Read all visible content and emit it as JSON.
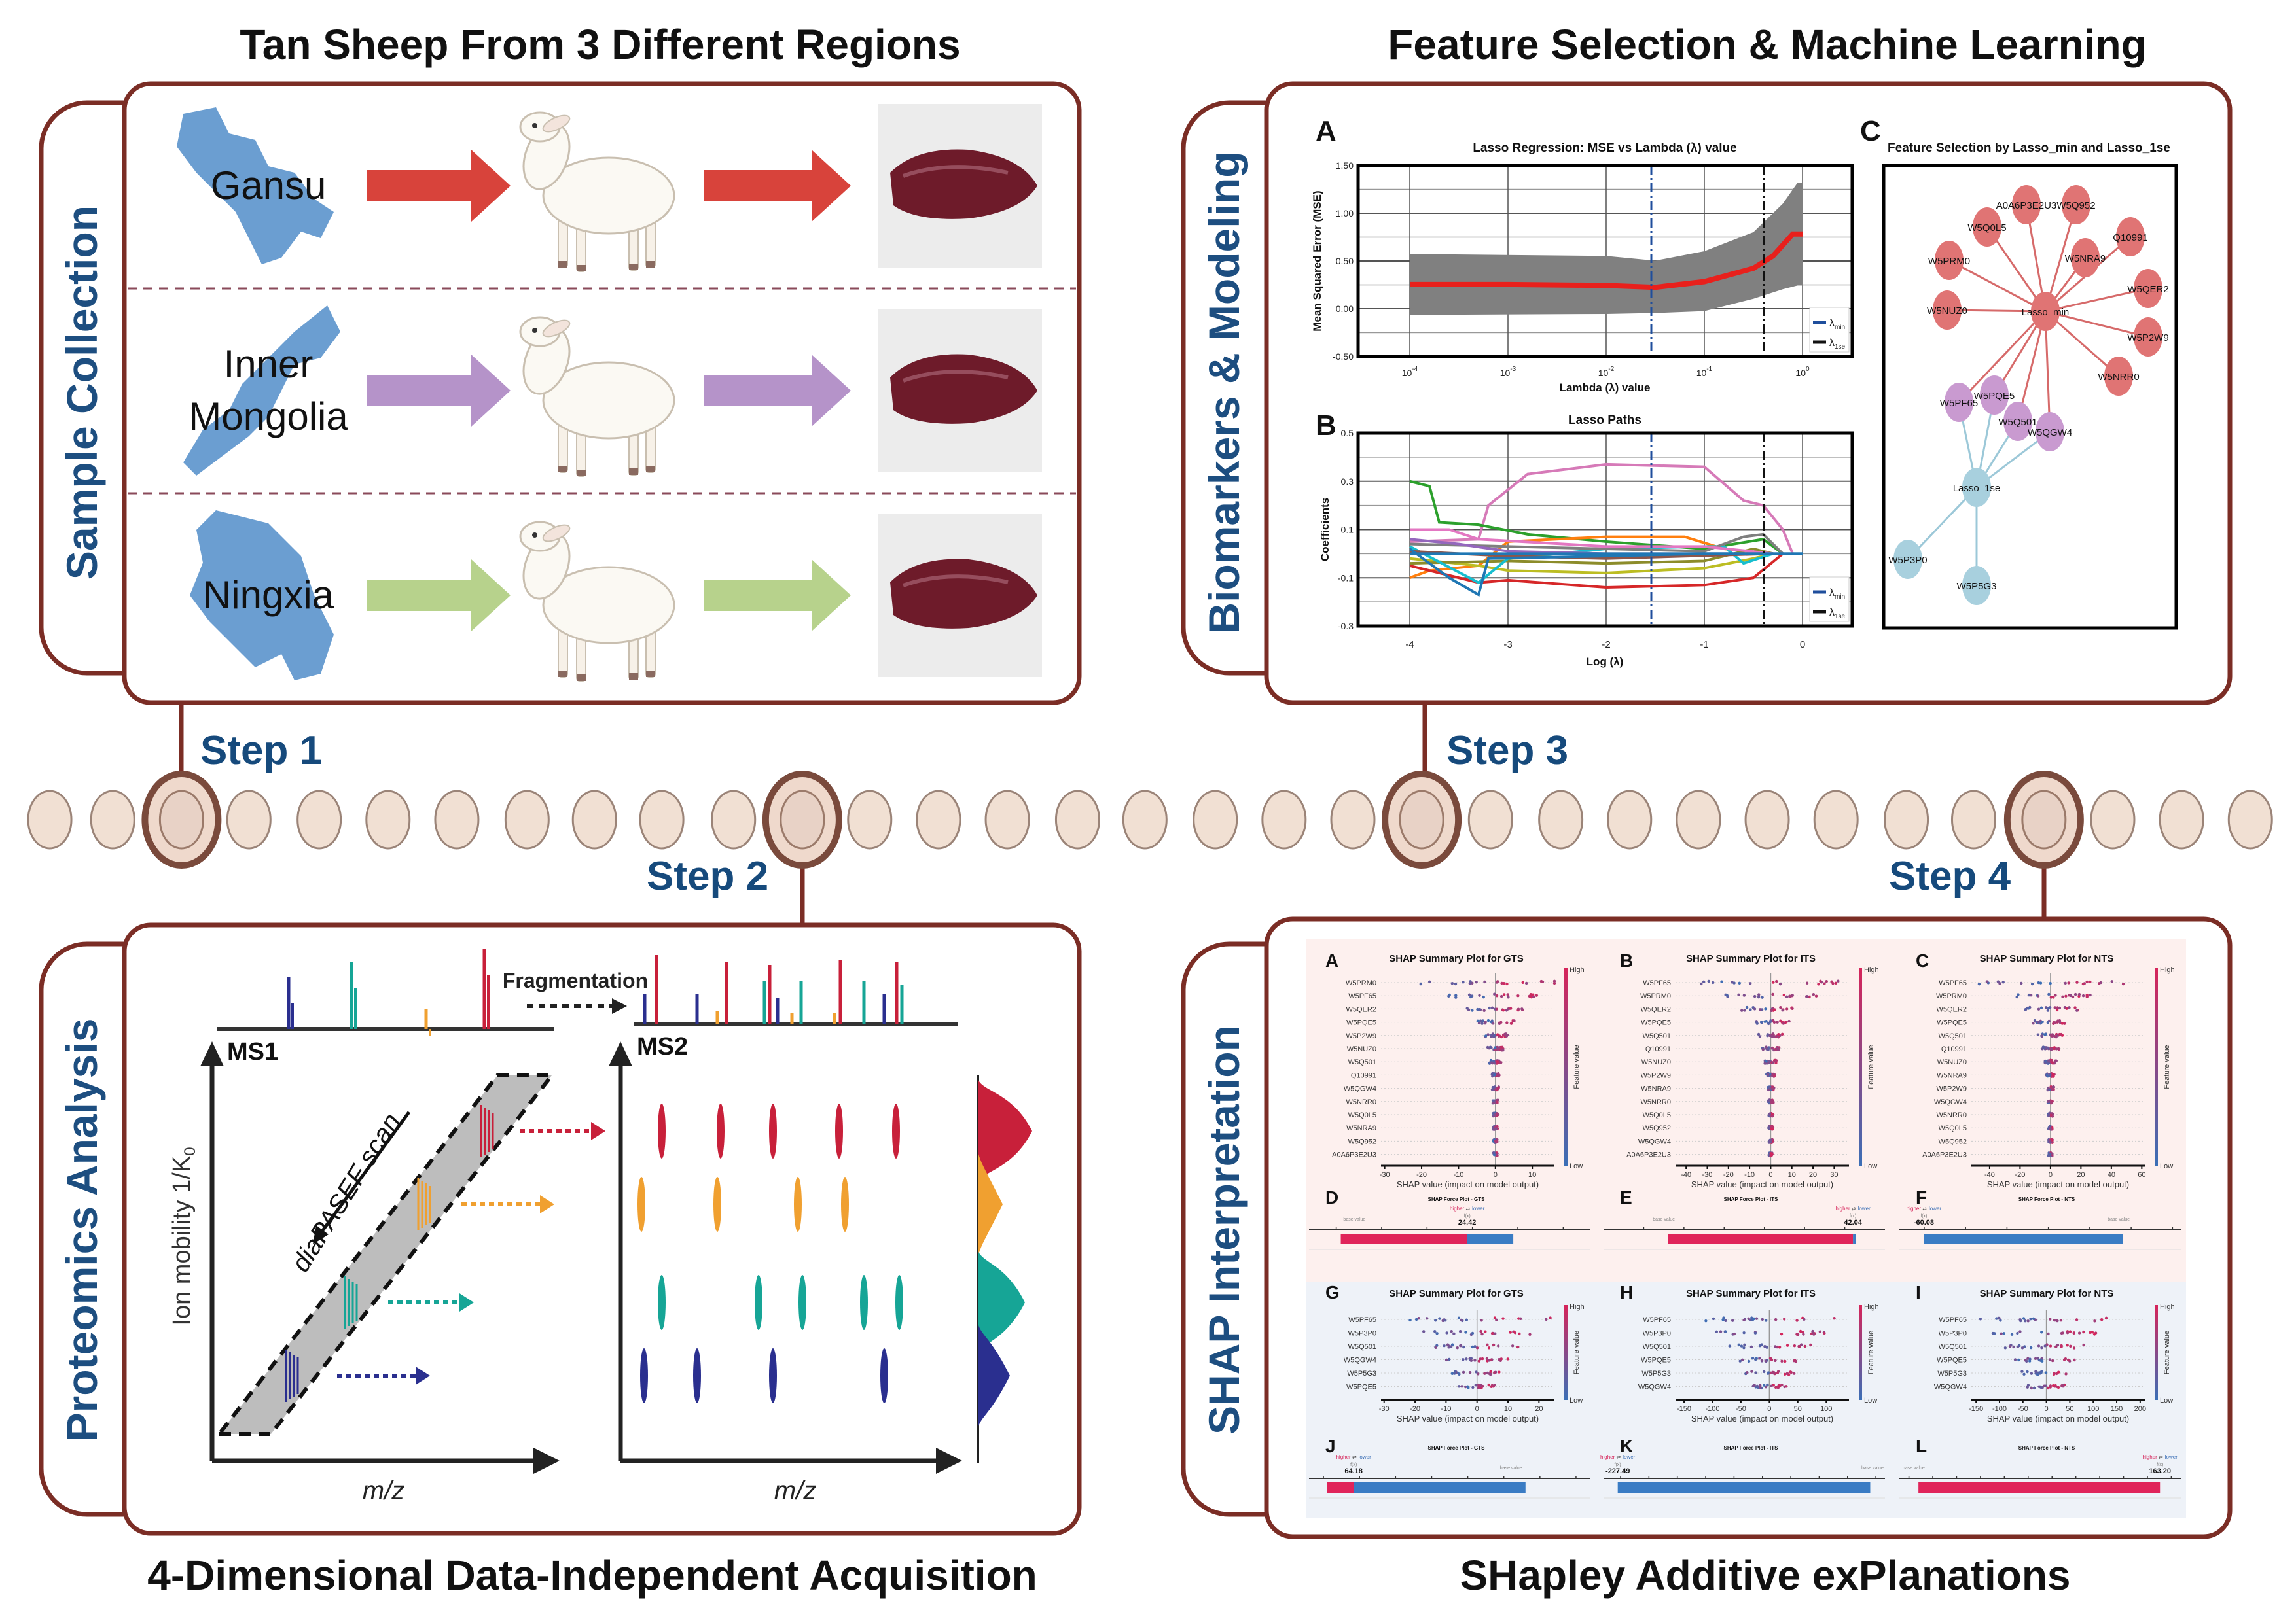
{
  "titles": {
    "top_left": "Tan Sheep From 3 Different Regions",
    "top_right": "Feature Selection & Machine Learning",
    "bottom_left": "4-Dimensional Data-Independent Acquisition",
    "bottom_right": "SHapley Additive exPlanations"
  },
  "tabs": {
    "sample": "Sample Collection",
    "proteomics": "Proteomics Analysis",
    "biomarkers": "Biomarkers & Modeling",
    "shap": "SHAP Interpretation"
  },
  "steps": [
    "Step 1",
    "Step 2",
    "Step 3",
    "Step 4"
  ],
  "regions": [
    {
      "lines": [
        "Gansu"
      ],
      "arrow_color": "#d8433b"
    },
    {
      "lines": [
        "Inner",
        "Mongolia"
      ],
      "arrow_color": "#b593c9"
    },
    {
      "lines": [
        "Ningxia"
      ],
      "arrow_color": "#b7d28c"
    }
  ],
  "colors": {
    "outline": "#7b2d25",
    "map": "#6b9ed1",
    "tab_text": "#1d4e80"
  },
  "proteomics": {
    "ms1": "MS1",
    "ms2": "MS2",
    "fragmentation": "Fragmentation",
    "scan": "diaPASEF scan",
    "y_axis": "Ion mobility 1/K",
    "y_axis_sub": "0",
    "x_axis": "m/z"
  },
  "lasso": {
    "a": {
      "letter": "A",
      "title": "Lasso Regression: MSE vs Lambda (λ) value",
      "xlabel": "Lambda (λ) value",
      "ylabel": "Mean Squared Error (MSE)",
      "yticks": [
        "1.50",
        "1.00",
        "0.50",
        "0.00",
        "-0.50"
      ],
      "xticks": [
        "10",
        "10",
        "10",
        "10",
        "10"
      ],
      "xtick_exp": [
        "-4",
        "-3",
        "-2",
        "-1",
        "0"
      ]
    },
    "b": {
      "letter": "B",
      "title": "Lasso Paths",
      "xlabel": "Log (λ)",
      "ylabel": "Coefficients",
      "yticks": [
        "0.5",
        "0.3",
        "0.1",
        "-0.1",
        "-0.3"
      ],
      "xticks": [
        "-4",
        "-3",
        "-2",
        "-1",
        "0"
      ]
    },
    "legend": {
      "symbol": "λ",
      "min": "min",
      "se": "1se",
      "min_color": "#1f4e9c",
      "se_color": "#111111"
    },
    "c": {
      "letter": "C",
      "title": "Feature Selection by Lasso_min and Lasso_1se",
      "hubs": {
        "min": "Lasso_min",
        "se": "Lasso_1se"
      },
      "min_only": [
        "A0A6P3E2U3",
        "W5Q952",
        "W5Q0L5",
        "Q10991",
        "W5PRM0",
        "W5NRA9",
        "W5QER2",
        "W5NUZ0",
        "W5P2W9",
        "W5NRR0"
      ],
      "shared": [
        "W5PF65",
        "W5PQE5",
        "W5Q501",
        "W5QGW4"
      ],
      "se_only": [
        "W5P3P0",
        "W5P5G3"
      ]
    }
  },
  "chart_data": [
    {
      "type": "line",
      "title": "Lasso Regression: MSE vs Lambda (λ) value",
      "x_log10": [
        -4,
        -3,
        -2,
        -1.5,
        -1,
        -0.5,
        -0.3,
        -0.1,
        0
      ],
      "mse": [
        0.25,
        0.25,
        0.24,
        0.22,
        0.28,
        0.42,
        0.55,
        0.78,
        0.78
      ],
      "band_x": [
        -4,
        -2,
        -1.5,
        -1,
        -0.5,
        -0.2,
        -0.05,
        0
      ],
      "band_upper": [
        0.57,
        0.55,
        0.5,
        0.6,
        0.8,
        1.1,
        1.32,
        1.32
      ],
      "band_lower": [
        -0.07,
        -0.06,
        -0.05,
        -0.03,
        0.1,
        0.2,
        0.24,
        0.24
      ],
      "lambda_min_log10": -1.54,
      "lambda_1se_log10": -0.39,
      "ylim": [
        -0.5,
        1.5
      ]
    },
    {
      "type": "line",
      "title": "Lasso Paths",
      "xlim": [
        -4,
        0
      ],
      "ylim": [
        -0.3,
        0.5
      ],
      "series": [
        {
          "color": "#d67ab8",
          "points": [
            [
              -4,
              0.05
            ],
            [
              -3.3,
              0.06
            ],
            [
              -3.2,
              0.2
            ],
            [
              -2.8,
              0.33
            ],
            [
              -2,
              0.37
            ],
            [
              -1,
              0.36
            ],
            [
              -0.6,
              0.22
            ],
            [
              -0.4,
              0.2
            ],
            [
              -0.2,
              0.1
            ],
            [
              -0.1,
              0
            ]
          ]
        },
        {
          "color": "#2ca02c",
          "points": [
            [
              -4,
              0.3
            ],
            [
              -3.8,
              0.28
            ],
            [
              -3.7,
              0.13
            ],
            [
              -3.3,
              0.12
            ],
            [
              -2.8,
              0.08
            ],
            [
              -2,
              0.05
            ],
            [
              -1,
              0.02
            ],
            [
              -0.4,
              0.06
            ],
            [
              -0.2,
              0
            ]
          ]
        },
        {
          "color": "#ff7f0e",
          "points": [
            [
              -4,
              -0.1
            ],
            [
              -3.8,
              -0.07
            ],
            [
              -3.3,
              -0.05
            ],
            [
              -3,
              0.05
            ],
            [
              -2,
              0.07
            ],
            [
              -1.2,
              0.07
            ],
            [
              -0.8,
              0.02
            ],
            [
              -0.3,
              0
            ]
          ]
        },
        {
          "color": "#d62728",
          "points": [
            [
              -4,
              -0.05
            ],
            [
              -3.3,
              -0.12
            ],
            [
              -3,
              -0.11
            ],
            [
              -2,
              -0.14
            ],
            [
              -1,
              -0.13
            ],
            [
              -0.5,
              -0.1
            ],
            [
              -0.2,
              0
            ]
          ]
        },
        {
          "color": "#bcbd22",
          "points": [
            [
              -4,
              -0.02
            ],
            [
              -3.3,
              -0.05
            ],
            [
              -3,
              -0.07
            ],
            [
              -2,
              -0.08
            ],
            [
              -1,
              -0.06
            ],
            [
              -0.5,
              -0.02
            ],
            [
              -0.3,
              0
            ]
          ]
        },
        {
          "color": "#8c8c2a",
          "points": [
            [
              -4,
              -0.04
            ],
            [
              -3,
              -0.03
            ],
            [
              -2,
              -0.04
            ],
            [
              -1,
              -0.03
            ],
            [
              -0.5,
              0.02
            ],
            [
              -0.3,
              0
            ]
          ]
        },
        {
          "color": "#17becf",
          "points": [
            [
              -4,
              0.03
            ],
            [
              -3.3,
              -0.12
            ],
            [
              -3,
              -0.02
            ],
            [
              -2,
              0.02
            ],
            [
              -1,
              0.03
            ],
            [
              -0.8,
              0.03
            ],
            [
              -0.6,
              -0.04
            ],
            [
              -0.3,
              0
            ]
          ]
        },
        {
          "color": "#7f7f7f",
          "points": [
            [
              -4,
              0.04
            ],
            [
              -3,
              0.03
            ],
            [
              -2,
              0.02
            ],
            [
              -1,
              0.01
            ],
            [
              -0.6,
              0.07
            ],
            [
              -0.4,
              0.08
            ],
            [
              -0.2,
              0
            ]
          ]
        },
        {
          "color": "#9467bd",
          "points": [
            [
              -4,
              0.06
            ],
            [
              -3.5,
              0.04
            ],
            [
              -3,
              0.01
            ],
            [
              -2,
              0
            ],
            [
              -0.3,
              0
            ]
          ]
        },
        {
          "color": "#8c564b",
          "points": [
            [
              -4,
              0.01
            ],
            [
              -3,
              -0.01
            ],
            [
              -2,
              -0.02
            ],
            [
              -0.3,
              0
            ]
          ]
        },
        {
          "color": "#e377c2",
          "points": [
            [
              -4,
              0.1
            ],
            [
              -3.6,
              0.1
            ],
            [
              -3.3,
              0.06
            ],
            [
              -2,
              0.03
            ],
            [
              -1,
              0.03
            ],
            [
              -0.3,
              0
            ]
          ]
        },
        {
          "color": "#1f77b4",
          "points": [
            [
              -4,
              0.02
            ],
            [
              -3.6,
              -0.1
            ],
            [
              -3.3,
              -0.17
            ],
            [
              -3.2,
              -0.02
            ],
            [
              -2,
              -0.01
            ],
            [
              -1,
              0
            ],
            [
              0,
              0
            ]
          ]
        }
      ]
    }
  ],
  "shap": {
    "xlabel": "SHAP value (impact on model output)",
    "colorbar": {
      "high": "High",
      "low": "Low",
      "label": "Feature value",
      "high_color": "#d6245a",
      "low_color": "#3b6fb6"
    },
    "summary": [
      {
        "letter": "A",
        "title": "SHAP Summary Plot for GTS",
        "xlim": [
          -31,
          16
        ],
        "ticks": [
          "-30",
          "-20",
          "-10",
          "0",
          "10"
        ],
        "features": [
          "W5PRM0",
          "W5PF65",
          "W5QER2",
          "W5PQE5",
          "W5P2W9",
          "W5NUZ0",
          "W5Q501",
          "Q10991",
          "W5QGW4",
          "W5NRR0",
          "W5Q0L5",
          "W5NRA9",
          "W5Q952",
          "A0A6P3E2U3"
        ]
      },
      {
        "letter": "B",
        "title": "SHAP Summary Plot for ITS",
        "xlim": [
          -45,
          37
        ],
        "ticks": [
          "-40",
          "-30",
          "-20",
          "-10",
          "0",
          "10",
          "20",
          "30"
        ],
        "features": [
          "W5PF65",
          "W5PRM0",
          "W5QER2",
          "W5PQE5",
          "W5Q501",
          "Q10991",
          "W5NUZ0",
          "W5P2W9",
          "W5NRA9",
          "W5NRR0",
          "W5Q0L5",
          "W5Q952",
          "W5QGW4",
          "A0A6P3E2U3"
        ]
      },
      {
        "letter": "C",
        "title": "SHAP Summary Plot for NTS",
        "xlim": [
          -52,
          62
        ],
        "ticks": [
          "-40",
          "-20",
          "0",
          "20",
          "40",
          "60"
        ],
        "features": [
          "W5PF65",
          "W5PRM0",
          "W5QER2",
          "W5PQE5",
          "W5Q501",
          "Q10991",
          "W5NUZ0",
          "W5NRA9",
          "W5P2W9",
          "W5QGW4",
          "W5NRR0",
          "W5Q0L5",
          "W5Q952",
          "A0A6P3E2U3"
        ]
      },
      {
        "letter": "G",
        "title": "SHAP Summary Plot for GTS",
        "xlim": [
          -31,
          25
        ],
        "ticks": [
          "-30",
          "-20",
          "-10",
          "0",
          "10",
          "20"
        ],
        "features": [
          "W5PF65",
          "W5P3P0",
          "W5Q501",
          "W5QGW4",
          "W5P5G3",
          "W5PQE5"
        ]
      },
      {
        "letter": "H",
        "title": "SHAP Summary Plot for ITS",
        "xlim": [
          -165,
          140
        ],
        "ticks": [
          "-150",
          "-100",
          "-50",
          "0",
          "50",
          "100"
        ],
        "features": [
          "W5PF65",
          "W5P3P0",
          "W5Q501",
          "W5PQE5",
          "W5P5G3",
          "W5QGW4"
        ]
      },
      {
        "letter": "I",
        "title": "SHAP Summary Plot for NTS",
        "xlim": [
          -160,
          210
        ],
        "ticks": [
          "-150",
          "-100",
          "-50",
          "0",
          "50",
          "100",
          "150",
          "200"
        ],
        "features": [
          "W5PF65",
          "W5P3P0",
          "W5Q501",
          "W5PQE5",
          "W5P5G3",
          "W5QGW4"
        ]
      }
    ],
    "force_common": {
      "higher": "higher",
      "lower": "lower",
      "arrows": "⇄",
      "fx": "f(x)",
      "base": "base value"
    },
    "force": [
      {
        "letter": "D",
        "title": "SHAP Force Plot - GTS",
        "value": "24.42",
        "fx": 24.42,
        "xlim": [
          7,
          38
        ],
        "ticks": [
          10,
          15,
          20,
          25,
          30,
          35
        ],
        "red_from": 10.5,
        "blue_to": 29.5,
        "base": 12
      },
      {
        "letter": "E",
        "title": "SHAP Force Plot - ITS",
        "value": "42.04",
        "fx": 42.04,
        "xlim": [
          -20,
          50
        ],
        "ticks": [
          -10,
          0,
          10,
          20,
          30,
          40
        ],
        "red_from": -4,
        "blue_to": 42.8,
        "base": -5
      },
      {
        "letter": "F",
        "title": "SHAP Force Plot - NTS",
        "value": "-60.08",
        "fx": -60.08,
        "xlim": [
          -66,
          2
        ],
        "ticks": [
          -60,
          -50,
          -40,
          -30,
          -20,
          -10,
          0
        ],
        "red_from": -60.08,
        "blue_to": -12,
        "base": -13
      },
      {
        "letter": "J",
        "title": "SHAP Force Plot - GTS",
        "value": "64.18",
        "fx": 64.18,
        "xlim": [
          58,
          97
        ],
        "ticks": [
          60,
          65,
          70,
          75,
          80,
          85,
          90,
          95
        ],
        "red_from": 60.5,
        "blue_to": 88,
        "base": 86
      },
      {
        "letter": "K",
        "title": "SHAP Force Plot - ITS",
        "value": "-227.49",
        "fx": -227.49,
        "xlim": [
          -240,
          8
        ],
        "ticks": [
          -225,
          -200,
          -175,
          -150,
          -125,
          -100,
          -75,
          -50,
          -25,
          0
        ],
        "red_from": -227.49,
        "blue_to": -5,
        "base": -3
      },
      {
        "letter": "L",
        "title": "SHAP Force Plot - NTS",
        "value": "163.20",
        "fx": 163.2,
        "xlim": [
          -110,
          185
        ],
        "ticks": [
          -100,
          -75,
          -50,
          -25,
          0,
          25,
          50,
          75,
          100,
          125,
          150,
          175
        ],
        "red_from": -90,
        "blue_to": 163.2,
        "base": -95
      }
    ]
  }
}
